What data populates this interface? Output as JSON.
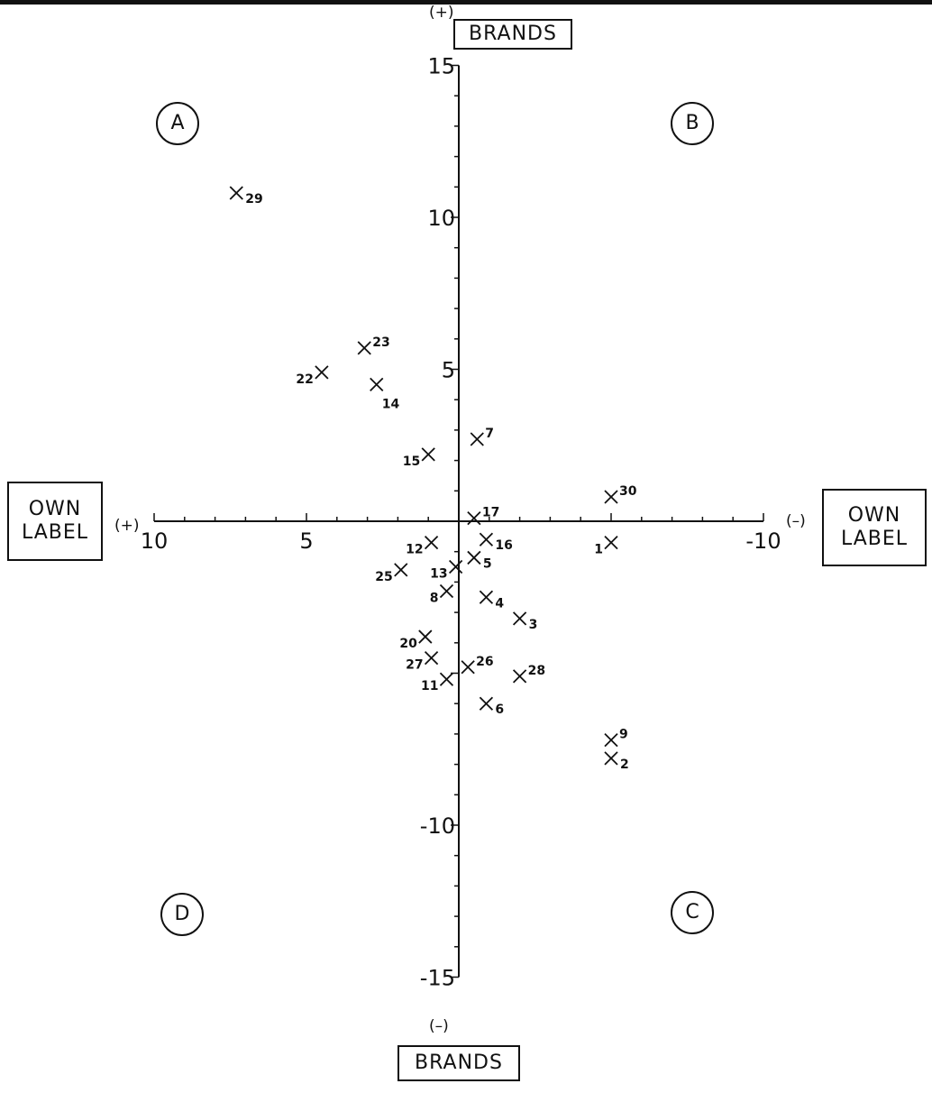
{
  "chart_data": {
    "type": "scatter",
    "x_axis": {
      "label_left": "OWN LABEL",
      "label_right": "OWN LABEL",
      "sign_left": "(+)",
      "sign_right": "(–)",
      "reversed": true,
      "range": [
        10,
        -10
      ],
      "ticks": [
        10,
        5,
        -10
      ],
      "tick_labels": [
        "10",
        "5",
        "-10"
      ]
    },
    "y_axis": {
      "label_top": "BRANDS",
      "label_bottom": "BRANDS",
      "sign_top": "(+)",
      "sign_bottom": "(–)",
      "range": [
        -15,
        15
      ],
      "ticks": [
        15,
        10,
        5,
        -10,
        -15
      ],
      "tick_labels": [
        "15",
        "10",
        "5",
        "-10",
        "-15"
      ]
    },
    "quadrants": [
      "A",
      "B",
      "C",
      "D"
    ],
    "points": [
      {
        "label": "1",
        "x": -5.0,
        "y": -0.7
      },
      {
        "label": "2",
        "x": -5.0,
        "y": -7.8
      },
      {
        "label": "3",
        "x": -2.0,
        "y": -3.2
      },
      {
        "label": "4",
        "x": -0.9,
        "y": -2.5
      },
      {
        "label": "5",
        "x": -0.5,
        "y": -1.2
      },
      {
        "label": "6",
        "x": -0.9,
        "y": -6.0
      },
      {
        "label": "7",
        "x": -0.6,
        "y": 2.7
      },
      {
        "label": "8",
        "x": 0.4,
        "y": -2.3
      },
      {
        "label": "9",
        "x": -5.0,
        "y": -7.2
      },
      {
        "label": "11",
        "x": 0.4,
        "y": -5.2
      },
      {
        "label": "12",
        "x": 0.9,
        "y": -0.7
      },
      {
        "label": "13",
        "x": 0.1,
        "y": -1.5
      },
      {
        "label": "14",
        "x": 2.7,
        "y": 4.5
      },
      {
        "label": "15",
        "x": 1.0,
        "y": 2.2
      },
      {
        "label": "16",
        "x": -0.9,
        "y": -0.6
      },
      {
        "label": "17",
        "x": -0.5,
        "y": 0.1
      },
      {
        "label": "20",
        "x": 1.1,
        "y": -3.8
      },
      {
        "label": "22",
        "x": 4.5,
        "y": 4.9
      },
      {
        "label": "23",
        "x": 3.1,
        "y": 5.7
      },
      {
        "label": "25",
        "x": 1.9,
        "y": -1.6
      },
      {
        "label": "26",
        "x": -0.3,
        "y": -4.8
      },
      {
        "label": "27",
        "x": 0.9,
        "y": -4.5
      },
      {
        "label": "28",
        "x": -2.0,
        "y": -5.1
      },
      {
        "label": "29",
        "x": 7.3,
        "y": 10.8
      },
      {
        "label": "30",
        "x": -5.0,
        "y": 0.8
      }
    ]
  }
}
